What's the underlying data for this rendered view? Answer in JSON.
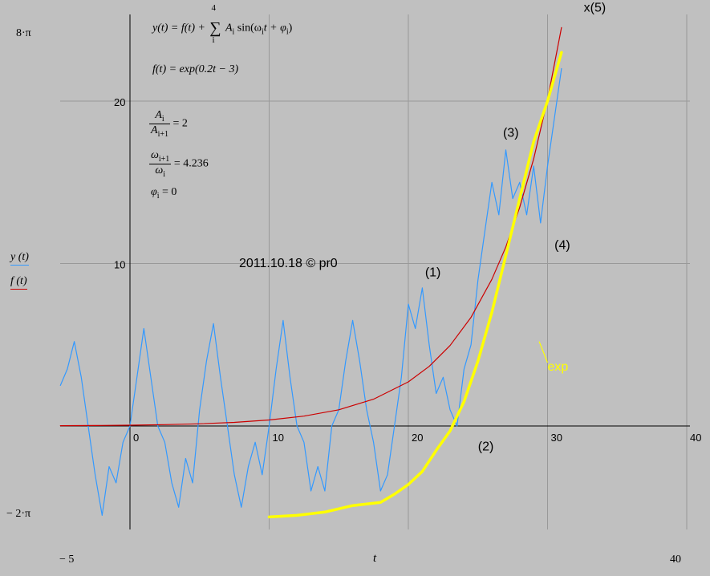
{
  "chart_data": {
    "type": "line",
    "xlabel": "t",
    "x_range_labels": {
      "min": "− 5",
      "max": "40"
    },
    "y_range_labels": {
      "max": "8·π",
      "min": "− 2·π"
    },
    "xlim": [
      -5,
      40
    ],
    "ylim": [
      -6.283,
      25.133
    ],
    "x_ticks": [
      0,
      10,
      20,
      30,
      40
    ],
    "x_tick_labels": [
      "0",
      "10",
      "20",
      "30",
      "40"
    ],
    "y_ticks": [
      10,
      20
    ],
    "y_tick_labels": [
      "10",
      "20"
    ],
    "grid": true,
    "legend": [
      {
        "label": "y (t)",
        "color": "#3399ff"
      },
      {
        "label": "f (t)",
        "color": "#cc0000"
      }
    ],
    "series": [
      {
        "name": "y (t)",
        "color": "#3399ff",
        "x": [
          -5,
          -4.5,
          -4,
          -3.5,
          -3,
          -2.5,
          -2,
          -1.5,
          -1,
          -0.5,
          0,
          0.5,
          1,
          1.5,
          2,
          2.5,
          3,
          3.5,
          4,
          4.5,
          5,
          5.5,
          6,
          6.5,
          7,
          7.5,
          8,
          8.5,
          9,
          9.5,
          10,
          10.5,
          11,
          11.5,
          12,
          12.5,
          13,
          13.5,
          14,
          14.5,
          15,
          15.5,
          16,
          16.5,
          17,
          17.5,
          18,
          18.5,
          19,
          19.5,
          20,
          20.5,
          21,
          21.5,
          22,
          22.5,
          23,
          23.5,
          24,
          24.5,
          25,
          25.5,
          26,
          26.5,
          27,
          27.5,
          28,
          28.5,
          29,
          29.5,
          30,
          30.5,
          31
        ],
        "y": [
          2.5,
          3.5,
          5.2,
          3,
          0,
          -3,
          -5.5,
          -2.5,
          -3.5,
          -1,
          0,
          3,
          6,
          3,
          0,
          -1,
          -3.5,
          -5,
          -2,
          -3.5,
          1,
          4,
          6.3,
          3,
          0,
          -3,
          -5,
          -2.5,
          -1,
          -3,
          0,
          3.5,
          6.5,
          3,
          0,
          -1,
          -4,
          -2.5,
          -4,
          0,
          1,
          4,
          6.5,
          4,
          1,
          -1,
          -4,
          -3,
          0,
          3,
          7.5,
          6,
          8.5,
          5,
          2,
          3,
          1,
          0,
          3.5,
          5,
          9,
          12,
          15,
          13,
          17,
          14,
          15,
          13,
          16,
          12.5,
          16,
          19,
          22
        ]
      },
      {
        "name": "f (t)",
        "color": "#cc0000",
        "x": [
          -5,
          -2.5,
          0,
          2.5,
          5,
          7.5,
          10,
          12.5,
          15,
          17.5,
          20,
          21.5,
          23,
          24.5,
          26,
          27,
          28,
          29,
          30,
          31
        ],
        "y": [
          0.018,
          0.03,
          0.05,
          0.082,
          0.135,
          0.223,
          0.368,
          0.607,
          1.0,
          1.649,
          2.718,
          3.669,
          4.953,
          6.686,
          9.025,
          11.02,
          13.46,
          16.44,
          20.09,
          24.53
        ]
      },
      {
        "name": "exp",
        "color": "#ffff00",
        "x": [
          10,
          12,
          14,
          16,
          17,
          18,
          19,
          20,
          21,
          22,
          23,
          24,
          25,
          26,
          27,
          28,
          29,
          30,
          30.5,
          31
        ],
        "y": [
          -5.6,
          -5.5,
          -5.3,
          -4.9,
          -4.8,
          -4.7,
          -4.2,
          -3.6,
          -2.8,
          -1.5,
          -0.3,
          1.5,
          4,
          7,
          10.5,
          14,
          17.5,
          20,
          21.5,
          23
        ]
      }
    ],
    "annotations": [
      {
        "text": "(1)",
        "x": 21.2,
        "y": 9.2
      },
      {
        "text": "(2)",
        "x": 25,
        "y": -1.5
      },
      {
        "text": "(3)",
        "x": 26.8,
        "y": 17.8
      },
      {
        "text": "(4)",
        "x": 30.5,
        "y": 10.9
      },
      {
        "text": "x(5)",
        "x": 32.6,
        "y": 25.5
      },
      {
        "text": "exp",
        "x": 30,
        "y": 3.4
      }
    ]
  },
  "formulas": {
    "line1_lhs": "y(t) = f(t) +",
    "line1_sum_top": "4",
    "line1_sum_bottom": "i",
    "line1_rhs": "A",
    "line1_rhs_sub": "i",
    "line1_rhs2": " sin(ω",
    "line1_rhs2_sub": "i",
    "line1_rhs3": "t + φ",
    "line1_rhs3_sub": "i",
    "line1_rhs4": ")",
    "line2": "f(t) = exp(0.2t − 3)",
    "frac1_num": "A",
    "frac1_num_sub": "i",
    "frac1_den": "A",
    "frac1_den_sub": "i+1",
    "frac1_val": "= 2",
    "frac2_num": "ω",
    "frac2_num_sub": "i+1",
    "frac2_den": "ω",
    "frac2_den_sub": "i",
    "frac2_val": "= 4.236",
    "phi": "φ",
    "phi_sub": "i",
    "phi_val": " = 0"
  },
  "watermark": "2011.10.18 © pr0"
}
